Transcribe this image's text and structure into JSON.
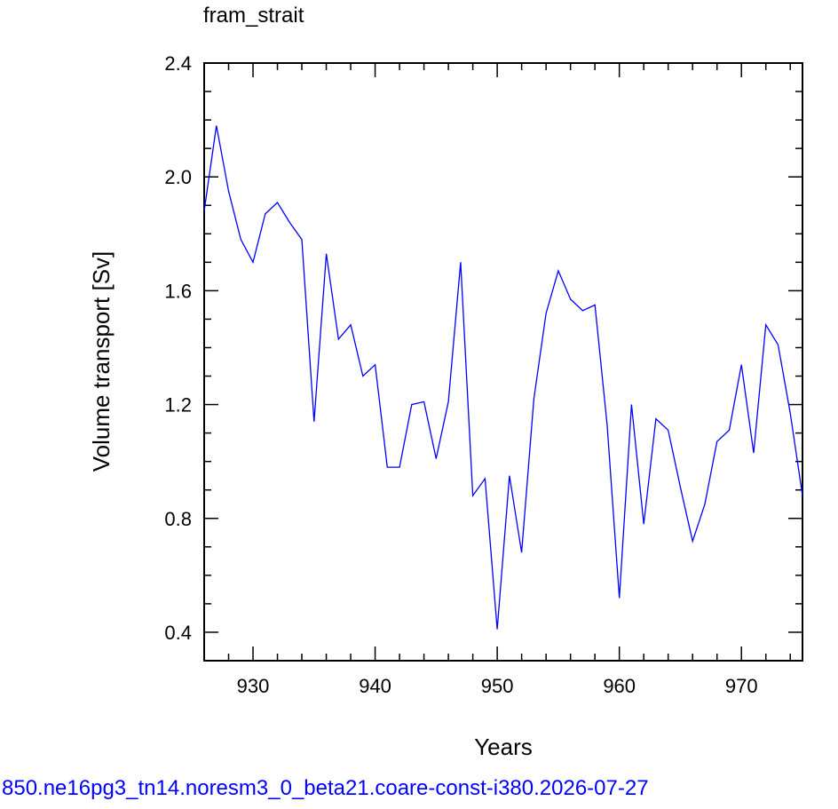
{
  "chart_data": {
    "type": "line",
    "title": "fram_strait",
    "xlabel": "Years",
    "ylabel": "Volume transport [Sv]",
    "xlim": [
      926,
      975
    ],
    "ylim": [
      0.3,
      2.4
    ],
    "x_ticks": [
      930,
      940,
      950,
      960,
      970
    ],
    "x_tick_labels": [
      "930",
      "940",
      "950",
      "960",
      "970"
    ],
    "y_ticks": [
      0.4,
      0.8,
      1.2,
      1.6,
      2.0,
      2.4
    ],
    "y_tick_labels": [
      "0.4",
      "0.8",
      "1.2",
      "1.6",
      "2.0",
      "2.4"
    ],
    "grid": false,
    "series": [
      {
        "color": "#0000ff",
        "x": [
          926,
          927,
          928,
          929,
          930,
          931,
          932,
          933,
          934,
          935,
          936,
          937,
          938,
          939,
          940,
          941,
          942,
          943,
          944,
          945,
          946,
          947,
          948,
          949,
          950,
          951,
          952,
          953,
          954,
          955,
          956,
          957,
          958,
          959,
          960,
          961,
          962,
          963,
          964,
          965,
          966,
          967,
          968,
          969,
          970,
          971,
          972,
          973,
          974,
          975
        ],
        "values": [
          1.88,
          2.18,
          1.95,
          1.78,
          1.7,
          1.87,
          1.91,
          1.84,
          1.78,
          1.14,
          1.73,
          1.43,
          1.48,
          1.3,
          1.34,
          0.98,
          0.98,
          1.2,
          1.21,
          1.01,
          1.21,
          1.7,
          0.88,
          0.94,
          0.41,
          0.95,
          0.68,
          1.22,
          1.52,
          1.67,
          1.57,
          1.53,
          1.55,
          1.13,
          0.52,
          1.2,
          0.78,
          1.15,
          1.11,
          0.91,
          0.72,
          0.85,
          1.07,
          1.11,
          1.34,
          1.03,
          1.48,
          1.41,
          1.17,
          0.88
        ]
      }
    ]
  },
  "caption": "850.ne16pg3_tn14.noresm3_0_beta21.coare-const-i380.2026-07-27"
}
